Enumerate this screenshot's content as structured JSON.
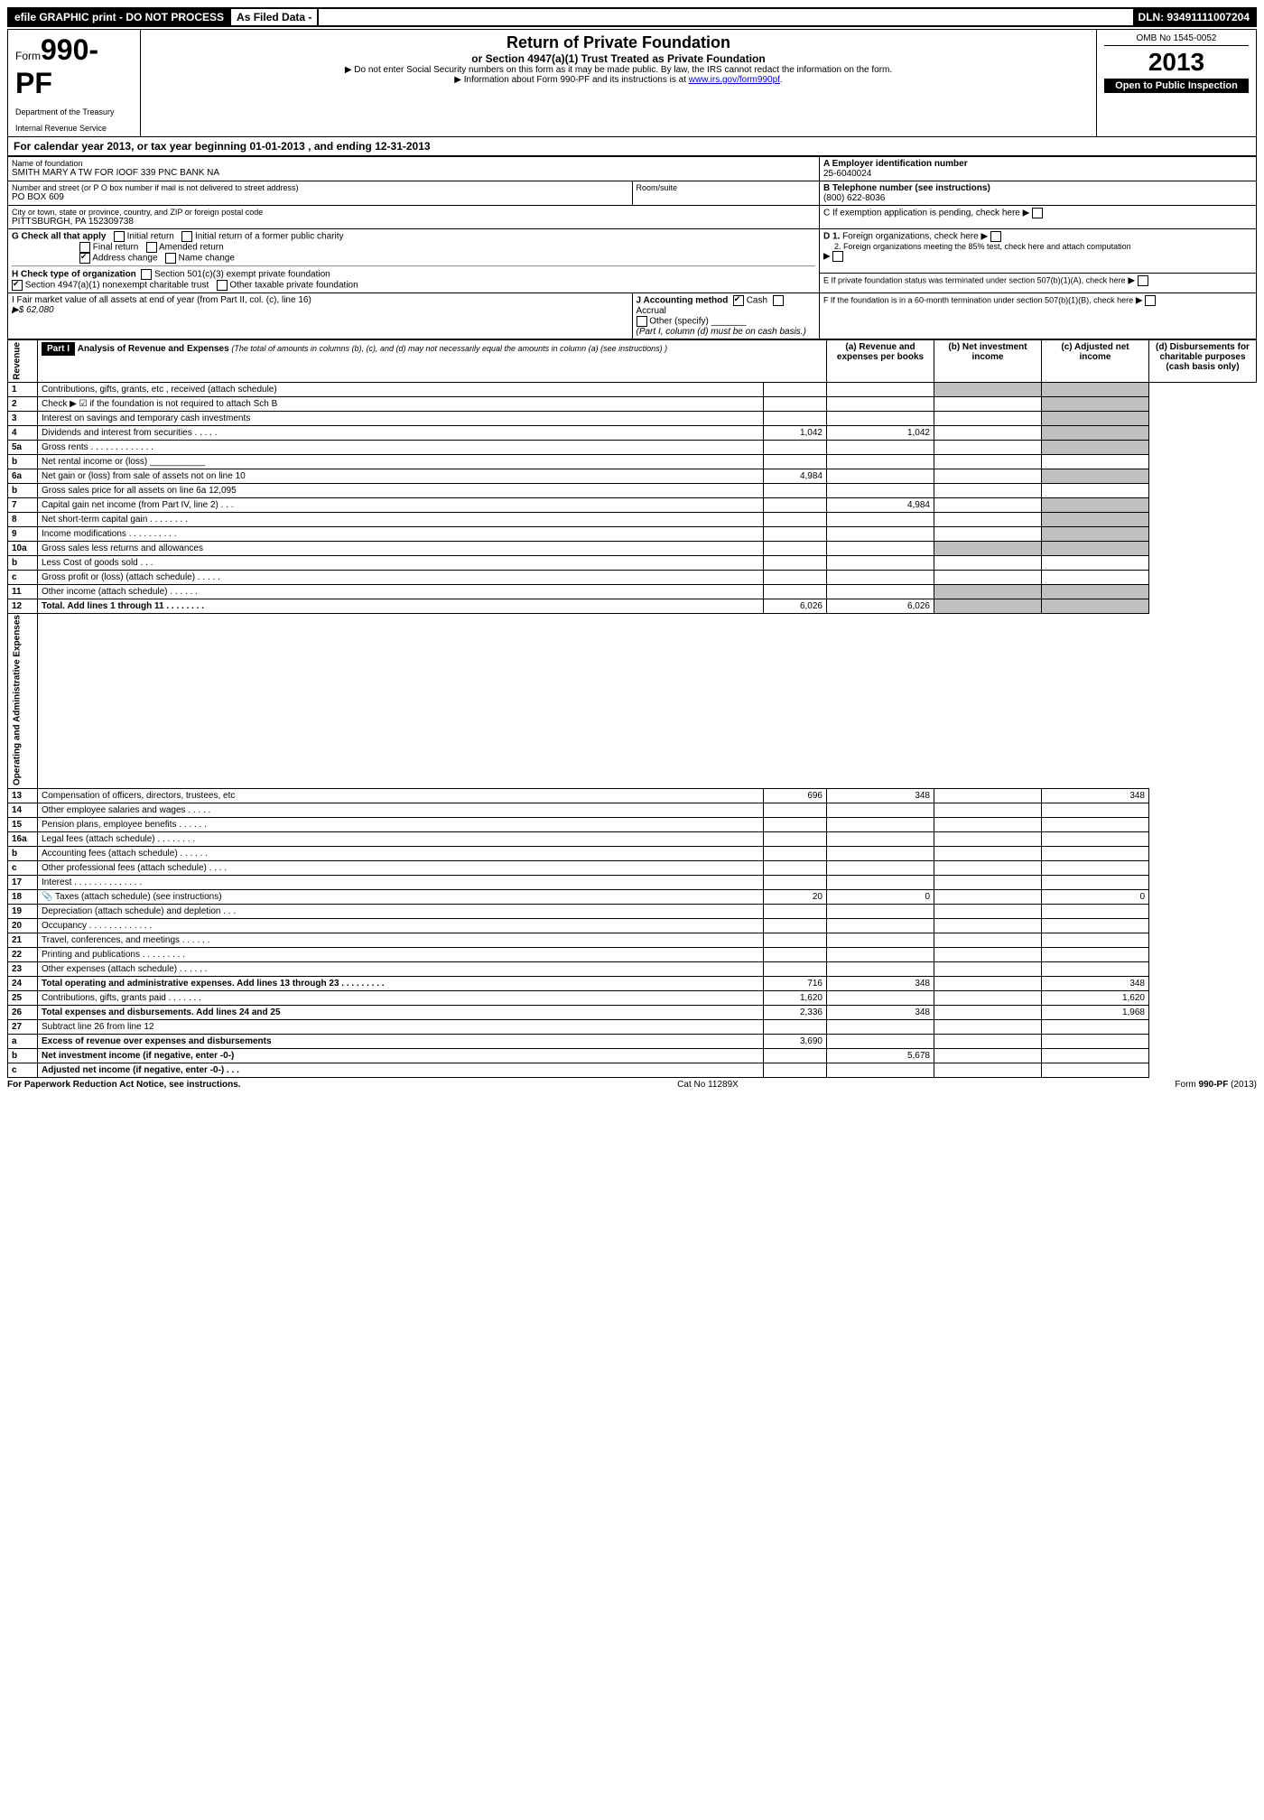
{
  "topbar": {
    "left": "efile GRAPHIC print - DO NOT PROCESS",
    "mid": "As Filed Data -",
    "dln_label": "DLN:",
    "dln": "93491111007204"
  },
  "header": {
    "form_prefix": "Form",
    "form_no": "990-PF",
    "dept1": "Department of the Treasury",
    "dept2": "Internal Revenue Service",
    "title": "Return of Private Foundation",
    "subtitle": "or Section 4947(a)(1) Trust Treated as Private Foundation",
    "instr1": "▶ Do not enter Social Security numbers on this form as it may be made public. By law, the IRS cannot redact the information on the form.",
    "instr2_pre": "▶ Information about Form 990-PF and its instructions is at ",
    "instr2_link": "www.irs.gov/form990pf",
    "instr2_post": ".",
    "omb": "OMB No 1545-0052",
    "year": "2013",
    "open": "Open to Public Inspection"
  },
  "cal": {
    "pre": "For calendar year 2013, or tax year beginning ",
    "begin": "01-01-2013",
    "mid": " , and ending ",
    "end": "12-31-2013"
  },
  "name": {
    "lbl": "Name of foundation",
    "val": "SMITH MARY A TW FOR IOOF 339 PNC BANK NA"
  },
  "ein": {
    "lbl": "A Employer identification number",
    "val": "25-6040024"
  },
  "addr": {
    "lbl": "Number and street (or P O box number if mail is not delivered to street address)",
    "room": "Room/suite",
    "val": "PO BOX 609"
  },
  "tel": {
    "lbl": "B Telephone number (see instructions)",
    "val": "(800) 622-8036"
  },
  "city": {
    "lbl": "City or town, state or province, country, and ZIP or foreign postal code",
    "val": "PITTSBURGH, PA 152309738"
  },
  "c_lbl": "C If exemption application is pending, check here  ▶",
  "g": {
    "lbl": "G Check all that apply",
    "opts": [
      "Initial return",
      "Initial return of a former public charity",
      "Final return",
      "Amended return",
      "Address change",
      "Name change"
    ],
    "addr_change_checked": true
  },
  "d1": "D 1. Foreign organizations, check here",
  "d2": "2. Foreign organizations meeting the 85% test, check here and attach computation",
  "e": "E If private foundation status was terminated under section 507(b)(1)(A), check here",
  "h": {
    "lbl": "H Check type of organization",
    "o1": "Section 501(c)(3) exempt private foundation",
    "o2": "Section 4947(a)(1) nonexempt charitable trust",
    "o2_checked": true,
    "o3": "Other taxable private foundation"
  },
  "i": {
    "lbl": "I Fair market value of all assets at end of year (from Part II, col. (c), line 16)",
    "amt": "▶$ 62,080"
  },
  "j": {
    "lbl": "J Accounting method",
    "cash": "Cash",
    "cash_checked": true,
    "accrual": "Accrual",
    "other": "Other (specify)",
    "note": "(Part I, column (d) must be on cash basis.)"
  },
  "f": "F If the foundation is in a 60-month termination under section 507(b)(1)(B), check here",
  "part1": {
    "label": "Part I",
    "title": "Analysis of Revenue and Expenses",
    "note": "(The total of amounts in columns (b), (c), and (d) may not necessarily equal the amounts in column (a) (see instructions) )"
  },
  "cols": {
    "a": "(a) Revenue and expenses per books",
    "b": "(b) Net investment income",
    "c": "(c) Adjusted net income",
    "d": "(d) Disbursements for charitable purposes (cash basis only)"
  },
  "side": {
    "rev": "Revenue",
    "exp": "Operating and Administrative Expenses"
  },
  "rows": [
    {
      "n": "1",
      "d": "Contributions, gifts, grants, etc , received (attach schedule)"
    },
    {
      "n": "2",
      "d": "Check ▶ ☑ if the foundation is not required to attach Sch B"
    },
    {
      "n": "3",
      "d": "Interest on savings and temporary cash investments"
    },
    {
      "n": "4",
      "d": "Dividends and interest from securities . . . . .",
      "a": "1,042",
      "b": "1,042"
    },
    {
      "n": "5a",
      "d": "Gross rents . . . . . . . . . . . . ."
    },
    {
      "n": "b",
      "d": "Net rental income or (loss) ___________"
    },
    {
      "n": "6a",
      "d": "Net gain or (loss) from sale of assets not on line 10",
      "a": "4,984"
    },
    {
      "n": "b",
      "d": "Gross sales price for all assets on line 6a  12,095"
    },
    {
      "n": "7",
      "d": "Capital gain net income (from Part IV, line 2) . . .",
      "b": "4,984"
    },
    {
      "n": "8",
      "d": "Net short-term capital gain . . . . . . . ."
    },
    {
      "n": "9",
      "d": "Income modifications . . . . . . . . . ."
    },
    {
      "n": "10a",
      "d": "Gross sales less returns and allowances"
    },
    {
      "n": "b",
      "d": "Less Cost of goods sold . . ."
    },
    {
      "n": "c",
      "d": "Gross profit or (loss) (attach schedule) . . . . ."
    },
    {
      "n": "11",
      "d": "Other income (attach schedule) . . . . . ."
    },
    {
      "n": "12",
      "d": "Total. Add lines 1 through 11 . . . . . . . .",
      "bold": true,
      "a": "6,026",
      "b": "6,026"
    },
    {
      "n": "13",
      "d": "Compensation of officers, directors, trustees, etc",
      "a": "696",
      "b": "348",
      "dd": "348"
    },
    {
      "n": "14",
      "d": "Other employee salaries and wages . . . . ."
    },
    {
      "n": "15",
      "d": "Pension plans, employee benefits . . . . . ."
    },
    {
      "n": "16a",
      "d": "Legal fees (attach schedule) . . . . . . . ."
    },
    {
      "n": "b",
      "d": "Accounting fees (attach schedule) . . . . . ."
    },
    {
      "n": "c",
      "d": "Other professional fees (attach schedule) . . . ."
    },
    {
      "n": "17",
      "d": "Interest . . . . . . . . . . . . . ."
    },
    {
      "n": "18",
      "d": "Taxes (attach schedule) (see instructions)",
      "icon": true,
      "a": "20",
      "b": "0",
      "dd": "0"
    },
    {
      "n": "19",
      "d": "Depreciation (attach schedule) and depletion . . ."
    },
    {
      "n": "20",
      "d": "Occupancy . . . . . . . . . . . . ."
    },
    {
      "n": "21",
      "d": "Travel, conferences, and meetings . . . . . ."
    },
    {
      "n": "22",
      "d": "Printing and publications . . . . . . . . ."
    },
    {
      "n": "23",
      "d": "Other expenses (attach schedule) . . . . . ."
    },
    {
      "n": "24",
      "d": "Total operating and administrative expenses. Add lines 13 through 23 . . . . . . . . .",
      "bold": true,
      "a": "716",
      "b": "348",
      "dd": "348"
    },
    {
      "n": "25",
      "d": "Contributions, gifts, grants paid . . . . . . .",
      "a": "1,620",
      "dd": "1,620"
    },
    {
      "n": "26",
      "d": "Total expenses and disbursements. Add lines 24 and 25",
      "bold": true,
      "a": "2,336",
      "b": "348",
      "dd": "1,968"
    },
    {
      "n": "27",
      "d": "Subtract line 26 from line 12"
    },
    {
      "n": "a",
      "d": "Excess of revenue over expenses and disbursements",
      "bold": true,
      "a": "3,690"
    },
    {
      "n": "b",
      "d": "Net investment income (if negative, enter -0-)",
      "bold": true,
      "b": "5,678"
    },
    {
      "n": "c",
      "d": "Adjusted net income (if negative, enter -0-) . . .",
      "bold": true
    }
  ],
  "footer": {
    "l": "For Paperwork Reduction Act Notice, see instructions.",
    "m": "Cat No 11289X",
    "r": "Form 990-PF (2013)"
  }
}
